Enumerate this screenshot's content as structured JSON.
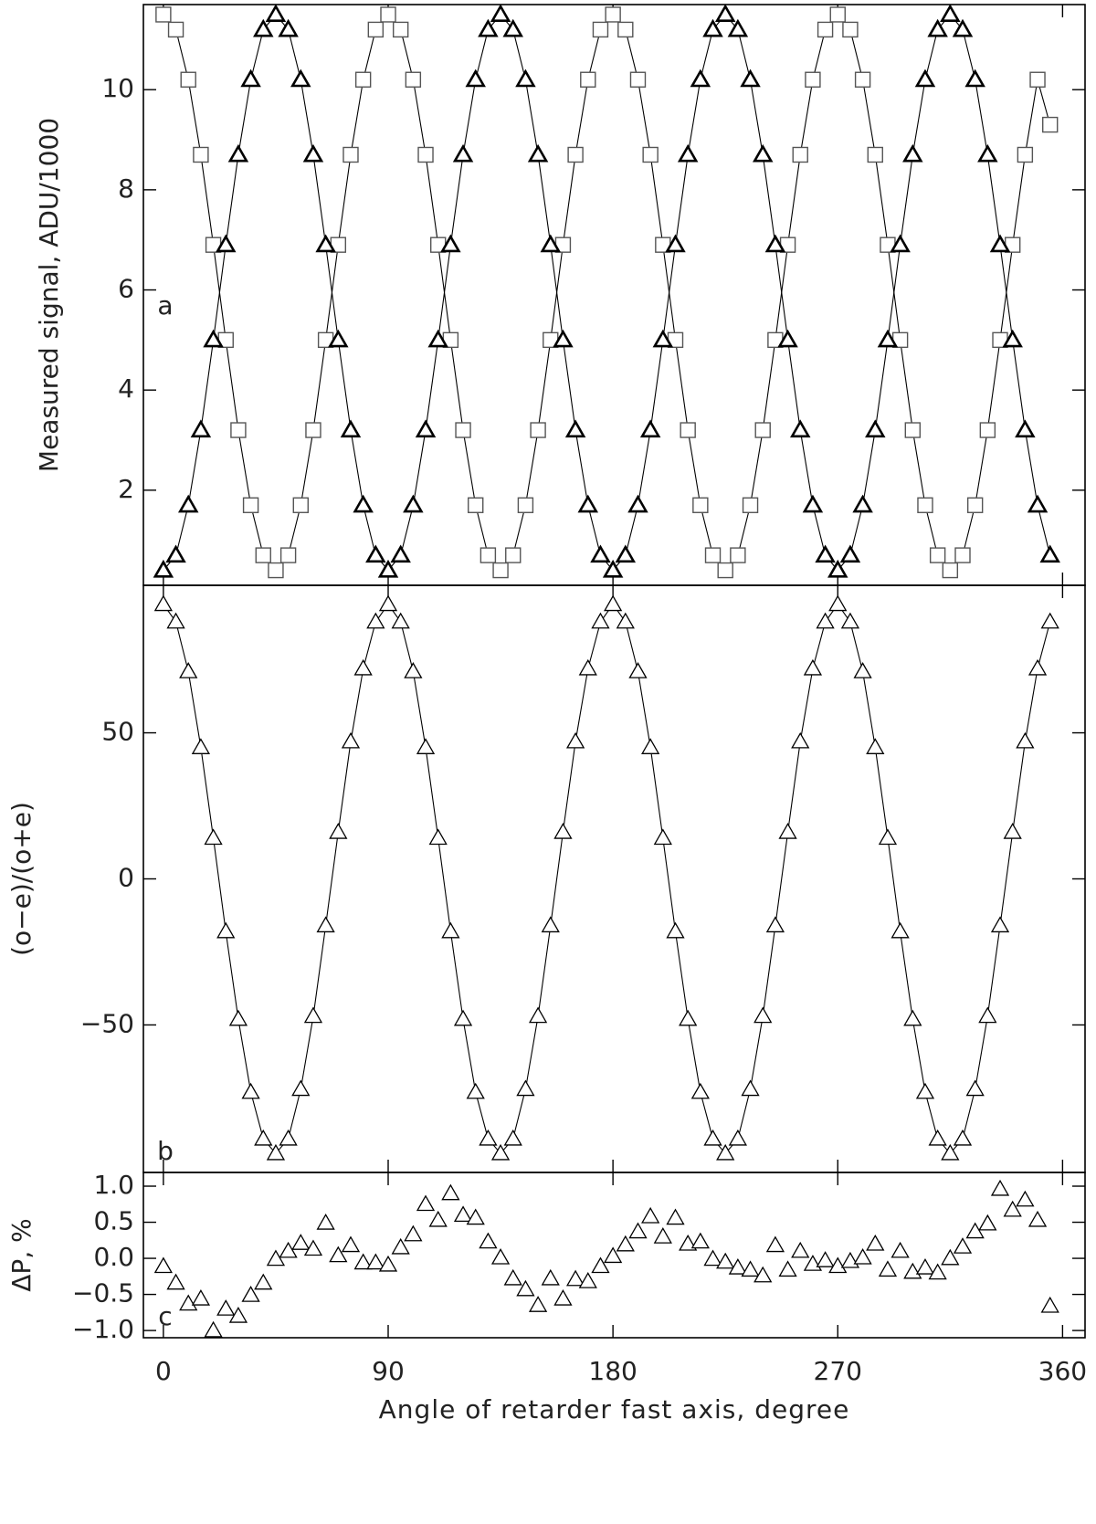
{
  "chart_data": [
    {
      "type": "scatter",
      "ylabel": "Measured signal, ADU/1000",
      "label": "a",
      "line": true,
      "x": [
        0,
        5,
        10,
        15,
        20,
        25,
        30,
        35,
        40,
        45,
        50,
        55,
        60,
        65,
        70,
        75,
        80,
        85,
        90,
        95,
        100,
        105,
        110,
        115,
        120,
        125,
        130,
        135,
        140,
        145,
        150,
        155,
        160,
        165,
        170,
        175,
        180,
        185,
        190,
        195,
        200,
        205,
        210,
        215,
        220,
        225,
        230,
        235,
        240,
        245,
        250,
        255,
        260,
        265,
        270,
        275,
        280,
        285,
        290,
        295,
        300,
        305,
        310,
        315,
        320,
        325,
        330,
        335,
        340,
        345,
        350,
        355
      ],
      "xlim": [
        -8,
        369
      ],
      "ylim": [
        0.1,
        11.7
      ],
      "yticks": [
        2,
        4,
        6,
        8,
        10
      ],
      "series": [
        {
          "marker": "square",
          "color": "#555555",
          "values": [
            11.5,
            11.2,
            10.2,
            8.7,
            6.9,
            5.0,
            3.2,
            1.7,
            0.7,
            0.4,
            0.7,
            1.7,
            3.2,
            5.0,
            6.9,
            8.7,
            10.2,
            11.2,
            11.5,
            11.2,
            10.2,
            8.7,
            6.9,
            5.0,
            3.2,
            1.7,
            0.7,
            0.4,
            0.7,
            1.7,
            3.2,
            5.0,
            6.9,
            8.7,
            10.2,
            11.2,
            11.5,
            11.2,
            10.2,
            8.7,
            6.9,
            5.0,
            3.2,
            1.7,
            0.7,
            0.4,
            0.7,
            1.7,
            3.2,
            5.0,
            6.9,
            8.7,
            10.2,
            11.2,
            11.5,
            11.2,
            10.2,
            8.7,
            6.9,
            5.0,
            3.2,
            1.7,
            0.7,
            0.4,
            0.7,
            1.7,
            3.2,
            5.0,
            6.9,
            8.7,
            10.2,
            9.3
          ]
        },
        {
          "marker": "triangle",
          "color": "#000000",
          "values": [
            0.4,
            0.7,
            1.7,
            3.2,
            5.0,
            6.9,
            8.7,
            10.2,
            11.2,
            11.5,
            11.2,
            10.2,
            8.7,
            6.9,
            5.0,
            3.2,
            1.7,
            0.7,
            0.4,
            0.7,
            1.7,
            3.2,
            5.0,
            6.9,
            8.7,
            10.2,
            11.2,
            11.5,
            11.2,
            10.2,
            8.7,
            6.9,
            5.0,
            3.2,
            1.7,
            0.7,
            0.4,
            0.7,
            1.7,
            3.2,
            5.0,
            6.9,
            8.7,
            10.2,
            11.2,
            11.5,
            11.2,
            10.2,
            8.7,
            6.9,
            5.0,
            3.2,
            1.7,
            0.7,
            0.4,
            0.7,
            1.7,
            3.2,
            5.0,
            6.9,
            8.7,
            10.2,
            11.2,
            11.5,
            11.2,
            10.2,
            8.7,
            6.9,
            5.0,
            3.2,
            1.7,
            0.7
          ]
        }
      ]
    },
    {
      "type": "scatter",
      "ylabel": "(o−e)/(o+e)",
      "label": "b",
      "line": true,
      "x": [
        0,
        5,
        10,
        15,
        20,
        25,
        30,
        35,
        40,
        45,
        50,
        55,
        60,
        65,
        70,
        75,
        80,
        85,
        90,
        95,
        100,
        105,
        110,
        115,
        120,
        125,
        130,
        135,
        140,
        145,
        150,
        155,
        160,
        165,
        170,
        175,
        180,
        185,
        190,
        195,
        200,
        205,
        210,
        215,
        220,
        225,
        230,
        235,
        240,
        245,
        250,
        255,
        260,
        265,
        270,
        275,
        280,
        285,
        290,
        295,
        300,
        305,
        310,
        315,
        320,
        325,
        330,
        335,
        340,
        345,
        350,
        355
      ],
      "xlim": [
        -8,
        369
      ],
      "ylim": [
        -100.5,
        100.5
      ],
      "yticks": [
        {
          "value": -50,
          "label": "−50"
        },
        0,
        50
      ],
      "series": [
        {
          "marker": "triangle",
          "color": "#000000",
          "values": [
            94,
            88,
            71,
            45,
            14,
            -18,
            -48,
            -73,
            -89,
            -94,
            -89,
            -72,
            -47,
            -16,
            16,
            47,
            72,
            88,
            94,
            88,
            71,
            45,
            14,
            -18,
            -48,
            -73,
            -89,
            -94,
            -89,
            -72,
            -47,
            -16,
            16,
            47,
            72,
            88,
            94,
            88,
            71,
            45,
            14,
            -18,
            -48,
            -73,
            -89,
            -94,
            -89,
            -72,
            -47,
            -16,
            16,
            47,
            72,
            88,
            94,
            88,
            71,
            45,
            14,
            -18,
            -48,
            -73,
            -89,
            -94,
            -89,
            -72,
            -47,
            -16,
            16,
            47,
            72,
            88
          ]
        }
      ]
    },
    {
      "type": "scatter",
      "ylabel": "ΔP, %",
      "label": "c",
      "line": false,
      "xlabel": "Angle of retarder fast axis, degree",
      "x": [
        0,
        5,
        10,
        15,
        20,
        25,
        30,
        35,
        40,
        45,
        50,
        55,
        60,
        65,
        70,
        75,
        80,
        85,
        90,
        95,
        100,
        105,
        110,
        115,
        120,
        125,
        130,
        135,
        140,
        145,
        150,
        155,
        160,
        165,
        170,
        175,
        180,
        185,
        190,
        195,
        200,
        205,
        210,
        215,
        220,
        225,
        230,
        235,
        240,
        245,
        250,
        255,
        260,
        265,
        270,
        275,
        280,
        285,
        290,
        295,
        300,
        305,
        310,
        315,
        320,
        325,
        330,
        335,
        340,
        345,
        350,
        355
      ],
      "xlim": [
        -8,
        369
      ],
      "xticks": [
        0,
        90,
        180,
        270,
        360
      ],
      "ylim": [
        -1.1,
        1.19
      ],
      "yticks": [
        {
          "value": -1,
          "label": "−1.0"
        },
        {
          "value": -0.5,
          "label": "−0.5"
        },
        {
          "value": 0,
          "label": "0.0"
        },
        {
          "value": 0.5,
          "label": "0.5"
        },
        {
          "value": 1,
          "label": "1.0"
        }
      ],
      "series": [
        {
          "marker": "triangle",
          "color": "#000000",
          "values": [
            -0.11,
            -0.34,
            -0.63,
            -0.56,
            -1.0,
            -0.7,
            -0.8,
            -0.51,
            -0.34,
            -0.01,
            0.1,
            0.21,
            0.13,
            0.49,
            0.04,
            0.18,
            -0.06,
            -0.06,
            -0.09,
            0.15,
            0.33,
            0.75,
            0.53,
            0.9,
            0.6,
            0.56,
            0.23,
            0.01,
            -0.28,
            -0.43,
            -0.65,
            -0.28,
            -0.56,
            -0.29,
            -0.32,
            -0.11,
            0.03,
            0.19,
            0.37,
            0.58,
            0.3,
            0.56,
            0.2,
            0.23,
            -0.01,
            -0.05,
            -0.13,
            -0.16,
            -0.24,
            0.18,
            -0.16,
            0.1,
            -0.08,
            -0.03,
            -0.11,
            -0.04,
            0.01,
            0.2,
            -0.16,
            0.1,
            -0.19,
            -0.13,
            -0.2,
            0,
            0.16,
            0.37,
            0.48,
            0.96,
            0.67,
            0.81,
            0.53,
            -0.66
          ]
        }
      ]
    }
  ]
}
